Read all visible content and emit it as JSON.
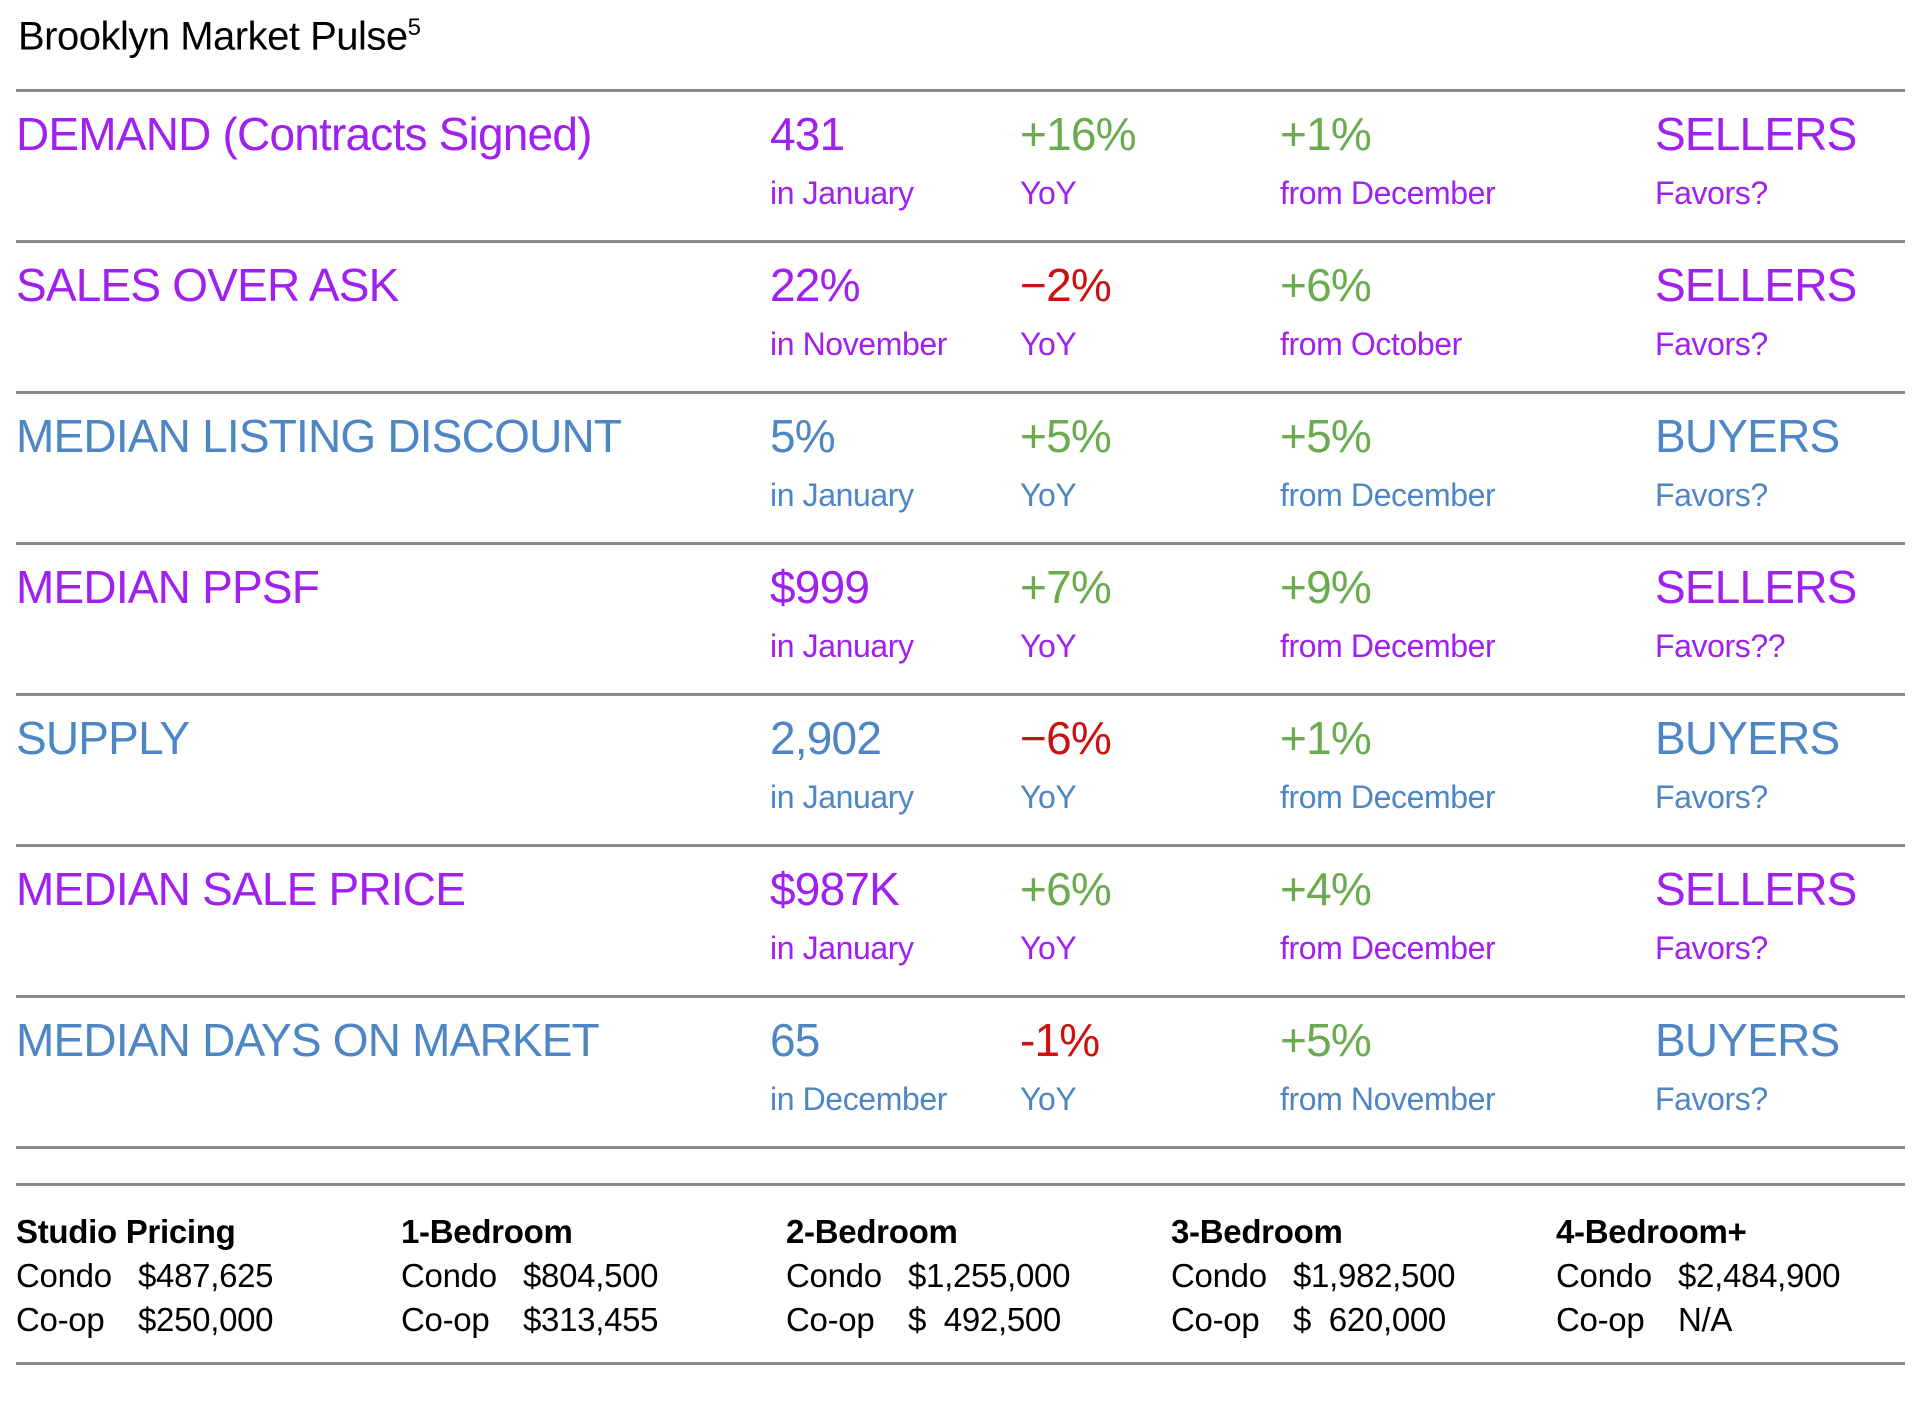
{
  "title": {
    "text": "Brooklyn Market Pulse",
    "superscript": "5"
  },
  "colors": {
    "purple": "#A020F0",
    "blue": "#4E86C5",
    "green": "#6AAB4D",
    "red": "#CC1111",
    "divider": "#8B8B8B"
  },
  "metrics": [
    {
      "label": "DEMAND (Contracts Signed)",
      "color": "#A020F0",
      "value": "431",
      "value_period": "in January",
      "yoy": "+16%",
      "yoy_color": "#6AAB4D",
      "yoy_label": "YoY",
      "mom": "+1%",
      "mom_color": "#6AAB4D",
      "mom_label": "from December",
      "favors": "SELLERS",
      "favors_label": "Favors?"
    },
    {
      "label": "SALES OVER ASK",
      "color": "#A020F0",
      "value": "22%",
      "value_period": "in November",
      "yoy": "−2%",
      "yoy_color": "#CC1111",
      "yoy_label": "YoY",
      "mom": "+6%",
      "mom_color": "#6AAB4D",
      "mom_label": "from October",
      "favors": "SELLERS",
      "favors_label": "Favors?"
    },
    {
      "label": "MEDIAN LISTING DISCOUNT",
      "color": "#4E86C5",
      "value": "5%",
      "value_period": "in January",
      "yoy": "+5%",
      "yoy_color": "#6AAB4D",
      "yoy_label": "YoY",
      "mom": "+5%",
      "mom_color": "#6AAB4D",
      "mom_label": "from December",
      "favors": "BUYERS",
      "favors_label": "Favors?"
    },
    {
      "label": "MEDIAN PPSF",
      "color": "#A020F0",
      "value": "$999",
      "value_period": "in January",
      "yoy": "+7%",
      "yoy_color": "#6AAB4D",
      "yoy_label": "YoY",
      "mom": "+9%",
      "mom_color": "#6AAB4D",
      "mom_label": "from December",
      "favors": "SELLERS",
      "favors_label": "Favors??"
    },
    {
      "label": "SUPPLY",
      "color": "#4E86C5",
      "value": "2,902",
      "value_period": "in January",
      "yoy": "−6%",
      "yoy_color": "#CC1111",
      "yoy_label": "YoY",
      "mom": "+1%",
      "mom_color": "#6AAB4D",
      "mom_label": "from December",
      "favors": "BUYERS",
      "favors_label": "Favors?"
    },
    {
      "label": "MEDIAN SALE PRICE",
      "color": "#A020F0",
      "value": "$987K",
      "value_period": "in January",
      "yoy": "+6%",
      "yoy_color": "#6AAB4D",
      "yoy_label": "YoY",
      "mom": "+4%",
      "mom_color": "#6AAB4D",
      "mom_label": "from December",
      "favors": "SELLERS",
      "favors_label": "Favors?"
    },
    {
      "label": "MEDIAN DAYS ON MARKET",
      "color": "#4E86C5",
      "value": "65",
      "value_period": "in December",
      "yoy": "-1%",
      "yoy_color": "#CC1111",
      "yoy_label": "YoY",
      "mom": "+5%",
      "mom_color": "#6AAB4D",
      "mom_label": "from November",
      "favors": "BUYERS",
      "favors_label": "Favors?"
    }
  ],
  "pricing": {
    "condo_label": "Condo",
    "coop_label": "Co-op",
    "groups": [
      {
        "header": "Studio Pricing",
        "condo": "$487,625",
        "coop": "$250,000"
      },
      {
        "header": "1-Bedroom",
        "condo": "$804,500",
        "coop": "$313,455"
      },
      {
        "header": "2-Bedroom",
        "condo": "$1,255,000",
        "coop": "$  492,500"
      },
      {
        "header": "3-Bedroom",
        "condo": "$1,982,500",
        "coop": "$  620,000"
      },
      {
        "header": "4-Bedroom+",
        "condo": "$2,484,900",
        "coop": "N/A"
      }
    ]
  }
}
